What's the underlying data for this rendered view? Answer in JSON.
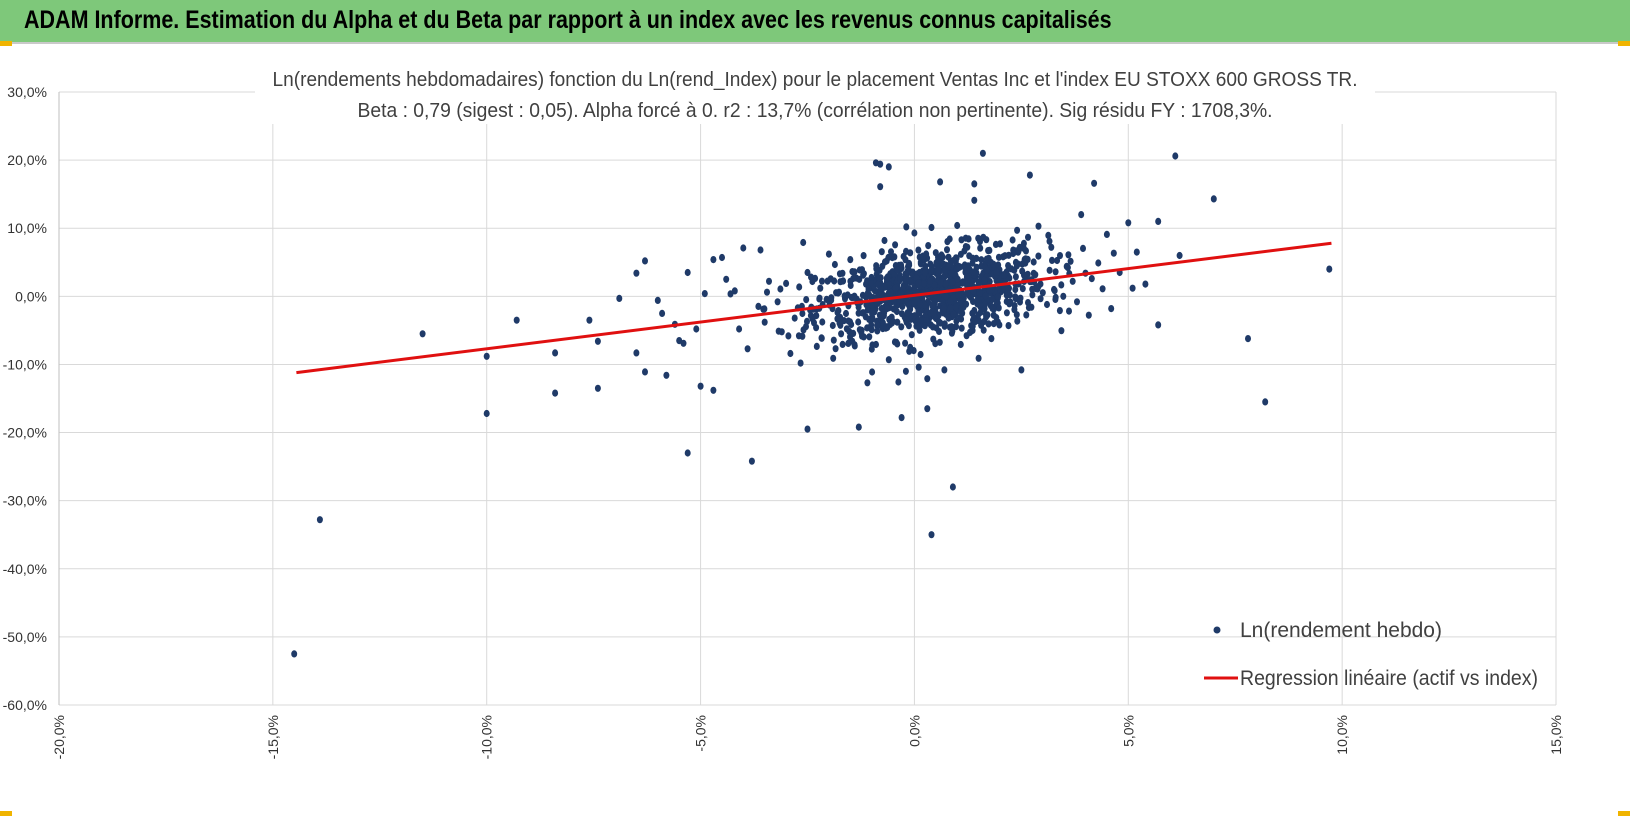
{
  "banner": {
    "title": "ADAM Informe. Estimation du Alpha et du Beta par rapport à un index avec les revenus connus capitalisés"
  },
  "colors": {
    "banner": "#7ec87a",
    "accent": "#f0b400",
    "points": "#1f3a68",
    "regression": "#e01010",
    "grid": "#d9d9d9"
  },
  "chart_data": {
    "type": "scatter",
    "title": [
      "Ln(rendements hebdomadaires) fonction du Ln(rend_Index) pour le placement Ventas Inc et l'index EU STOXX 600 GROSS TR.",
      "Beta : 0,79 (sigest : 0,05). Alpha forcé à 0. r2 : 13,7% (corrélation non pertinente). Sig résidu FY : 1708,3%."
    ],
    "xlabel": "",
    "ylabel": "",
    "xlim": [
      -0.2,
      0.15
    ],
    "ylim": [
      -0.6,
      0.3
    ],
    "x_ticks": [
      -0.2,
      -0.15,
      -0.1,
      -0.05,
      0.0,
      0.05,
      0.1,
      0.15
    ],
    "x_tick_labels": [
      "-20,0%",
      "-15,0%",
      "-10,0%",
      "-5,0%",
      "0,0%",
      "5,0%",
      "10,0%",
      "15,0%"
    ],
    "y_ticks": [
      0.3,
      0.2,
      0.1,
      0.0,
      -0.1,
      -0.2,
      -0.3,
      -0.4,
      -0.5,
      -0.6
    ],
    "y_tick_labels": [
      "30,0%",
      "20,0%",
      "10,0%",
      "0,0%",
      "-10,0%",
      "-20,0%",
      "-30,0%",
      "-40,0%",
      "-50,0%",
      "-60,0%"
    ],
    "grid": true,
    "legend": {
      "position": "bottom-right",
      "entries": [
        {
          "label": "Ln(rendement hebdo)",
          "kind": "marker"
        },
        {
          "label": "Regression linéaire (actif vs index)",
          "kind": "line"
        }
      ]
    },
    "series": [
      {
        "name": "Ln(rendement hebdo)",
        "type": "scatter",
        "color": "#1f3a68",
        "points": [
          [
            -0.145,
            -0.525
          ],
          [
            -0.139,
            -0.328
          ],
          [
            -0.115,
            -0.055
          ],
          [
            -0.1,
            -0.172
          ],
          [
            -0.1,
            -0.088
          ],
          [
            -0.093,
            -0.035
          ],
          [
            -0.084,
            -0.083
          ],
          [
            -0.084,
            -0.142
          ],
          [
            -0.076,
            -0.035
          ],
          [
            -0.074,
            -0.066
          ],
          [
            -0.074,
            -0.135
          ],
          [
            -0.069,
            -0.003
          ],
          [
            -0.065,
            0.034
          ],
          [
            -0.065,
            -0.083
          ],
          [
            -0.063,
            0.052
          ],
          [
            -0.063,
            -0.111
          ],
          [
            -0.06,
            -0.006
          ],
          [
            -0.059,
            -0.025
          ],
          [
            -0.058,
            -0.116
          ],
          [
            -0.056,
            -0.041
          ],
          [
            -0.055,
            -0.065
          ],
          [
            -0.054,
            -0.069
          ],
          [
            -0.053,
            0.035
          ],
          [
            -0.053,
            -0.23
          ],
          [
            -0.051,
            -0.048
          ],
          [
            -0.05,
            -0.132
          ],
          [
            -0.049,
            0.004
          ],
          [
            -0.047,
            -0.138
          ],
          [
            -0.047,
            0.054
          ],
          [
            -0.045,
            0.057
          ],
          [
            -0.044,
            0.025
          ],
          [
            -0.042,
            0.008
          ],
          [
            -0.041,
            -0.048
          ],
          [
            -0.04,
            0.071
          ],
          [
            -0.039,
            -0.077
          ],
          [
            -0.038,
            -0.242
          ],
          [
            -0.036,
            0.068
          ],
          [
            -0.035,
            -0.038
          ],
          [
            -0.034,
            0.022
          ],
          [
            -0.032,
            -0.008
          ],
          [
            -0.031,
            -0.052
          ],
          [
            -0.03,
            0.019
          ],
          [
            -0.029,
            -0.084
          ],
          [
            -0.028,
            -0.032
          ],
          [
            -0.027,
            -0.058
          ],
          [
            -0.026,
            0.079
          ],
          [
            -0.025,
            -0.195
          ],
          [
            -0.025,
            0.035
          ],
          [
            -0.023,
            -0.046
          ],
          [
            -0.022,
            0.012
          ],
          [
            -0.02,
            0.062
          ],
          [
            -0.019,
            -0.091
          ],
          [
            -0.018,
            -0.033
          ],
          [
            -0.015,
            0.054
          ],
          [
            -0.014,
            -0.071
          ],
          [
            -0.013,
            -0.192
          ],
          [
            -0.012,
            0.031
          ],
          [
            -0.011,
            -0.127
          ],
          [
            -0.01,
            -0.049
          ],
          [
            -0.009,
            0.196
          ],
          [
            -0.008,
            0.161
          ],
          [
            -0.008,
            0.194
          ],
          [
            -0.007,
            0.082
          ],
          [
            -0.006,
            0.19
          ],
          [
            -0.006,
            -0.093
          ],
          [
            -0.005,
            -0.037
          ],
          [
            -0.004,
            0.039
          ],
          [
            -0.003,
            -0.178
          ],
          [
            -0.002,
            -0.11
          ],
          [
            -0.001,
            -0.075
          ],
          [
            0.0,
            0.093
          ],
          [
            0.001,
            -0.104
          ],
          [
            0.002,
            0.059
          ],
          [
            0.003,
            -0.121
          ],
          [
            0.003,
            -0.165
          ],
          [
            0.004,
            0.101
          ],
          [
            0.004,
            -0.35
          ],
          [
            0.005,
            0.064
          ],
          [
            0.006,
            0.168
          ],
          [
            0.007,
            -0.108
          ],
          [
            0.008,
            0.043
          ],
          [
            0.008,
            -0.032
          ],
          [
            0.009,
            -0.28
          ],
          [
            0.01,
            0.104
          ],
          [
            0.011,
            0.083
          ],
          [
            0.012,
            0.073
          ],
          [
            0.013,
            -0.053
          ],
          [
            0.014,
            0.165
          ],
          [
            0.014,
            0.141
          ],
          [
            0.015,
            -0.091
          ],
          [
            0.016,
            0.21
          ],
          [
            0.017,
            0.038
          ],
          [
            0.018,
            -0.062
          ],
          [
            0.02,
            0.077
          ],
          [
            0.021,
            0.031
          ],
          [
            0.022,
            -0.043
          ],
          [
            0.024,
            0.097
          ],
          [
            0.025,
            -0.108
          ],
          [
            0.026,
            0.055
          ],
          [
            0.027,
            0.178
          ],
          [
            0.028,
            0.021
          ],
          [
            0.029,
            0.103
          ],
          [
            0.031,
            -0.012
          ],
          [
            0.032,
            0.072
          ],
          [
            0.033,
            0.036
          ],
          [
            0.034,
            -0.021
          ],
          [
            0.036,
            0.061
          ],
          [
            0.037,
            0.022
          ],
          [
            0.038,
            -0.008
          ],
          [
            0.039,
            0.12
          ],
          [
            0.04,
            0.034
          ],
          [
            0.042,
            0.166
          ],
          [
            0.043,
            0.049
          ],
          [
            0.044,
            0.011
          ],
          [
            0.045,
            0.091
          ],
          [
            0.046,
            -0.018
          ],
          [
            0.048,
            0.035
          ],
          [
            0.05,
            0.108
          ],
          [
            0.051,
            0.012
          ],
          [
            0.052,
            0.065
          ],
          [
            0.054,
            0.018
          ],
          [
            0.057,
            -0.042
          ],
          [
            0.057,
            0.11
          ],
          [
            0.061,
            0.206
          ],
          [
            0.062,
            0.06
          ],
          [
            0.07,
            0.143
          ],
          [
            0.078,
            -0.062
          ],
          [
            0.082,
            -0.155
          ],
          [
            0.097,
            0.04
          ]
        ],
        "dense_cloud": {
          "count": 1000,
          "center": [
            0.004,
            0.005
          ],
          "spread": [
            0.0135,
            0.031
          ],
          "slope": 0.79
        }
      },
      {
        "name": "Regression linéaire (actif vs index)",
        "type": "line",
        "color": "#e01010",
        "points": [
          [
            -0.1445,
            -0.112
          ],
          [
            0.0975,
            0.078
          ]
        ]
      }
    ]
  }
}
